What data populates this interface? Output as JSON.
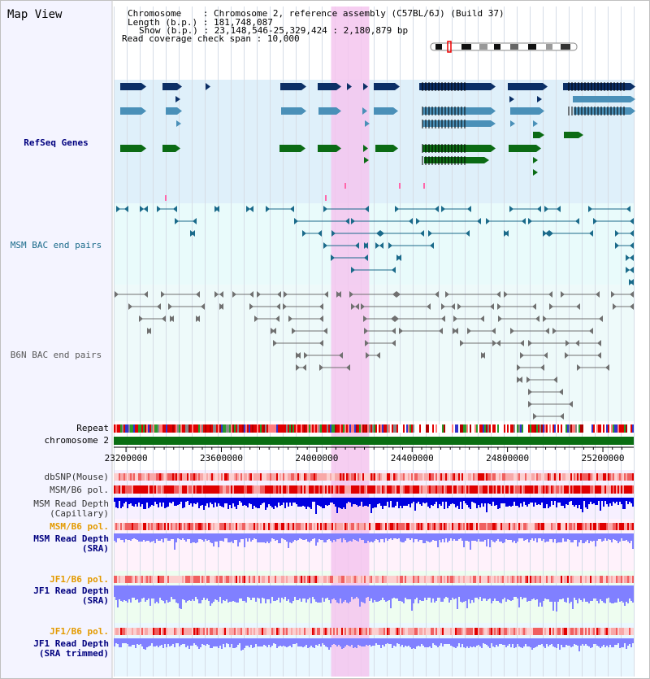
{
  "title": "Map View",
  "header": {
    "chromosome_key": "Chromosome",
    "chromosome_value": "Chromosome 2, reference assembly (C57BL/6J) (Build 37)",
    "length_key": "Length (b.p.)",
    "length_value": "181,748,087",
    "show_key": "Show (b.p.)",
    "show_value": "23,148,546-25,329,424 : 2,180,879 bp",
    "span_key": "Read coverage check span",
    "span_value": "10,000"
  },
  "tracks": {
    "refseq": "RefSeq Genes",
    "msm_bac": "MSM BAC end pairs",
    "b6n_bac": "B6N BAC end pairs",
    "repeat": "Repeat",
    "chromosome": "chromosome 2",
    "dbsnp": "dbSNP(Mouse)",
    "msm_b6_pol_1": "MSM/B6 pol.",
    "msm_depth_cap_1": "MSM Read Depth",
    "msm_depth_cap_2": "(Capillary)",
    "msm_b6_pol_2": "MSM/B6 pol.",
    "msm_depth_sra_1": "MSM Read Depth",
    "msm_depth_sra_2": "(SRA)",
    "jf1_b6_pol_1": "JF1/B6 pol.",
    "jf1_depth_sra_1": "JF1 Read Depth",
    "jf1_depth_sra_2": "(SRA)",
    "jf1_b6_pol_2": "JF1/B6 pol.",
    "jf1_depth_trim_1": "JF1 Read Depth",
    "jf1_depth_trim_2": "(SRA trimmed)"
  },
  "axis": {
    "ticks": [
      "23200000",
      "23600000",
      "24000000",
      "24400000",
      "24800000",
      "25200000"
    ],
    "tick_values": [
      23200000,
      23600000,
      24000000,
      24400000,
      24800000,
      25200000
    ],
    "view_start": 23148546,
    "view_end": 25329424
  },
  "highlight": {
    "start": 24060000,
    "end": 24220000
  },
  "colors": {
    "refseq_dark": "#0b2f66",
    "refseq_mid": "#4a90b8",
    "refseq_green": "#0b6b14",
    "msm_bac": "#1a6a8a",
    "b6n_bac": "#707070",
    "highlight": "#f5c6ef",
    "label_blue": "#00007f",
    "label_orange": "#e39a00",
    "depth_dark": "#0000e0",
    "depth_light": "#8080ff"
  }
}
